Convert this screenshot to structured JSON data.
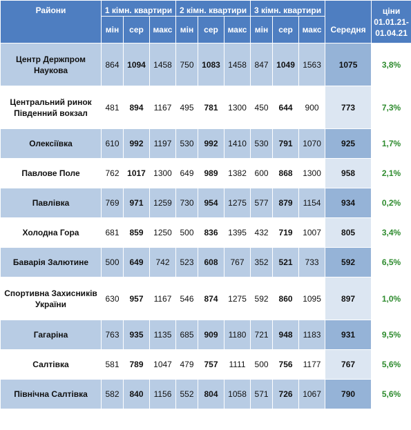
{
  "header": {
    "district": "Райони",
    "groups": [
      "1 кімн. квартири",
      "2 кімн. квартири",
      "3 кімн. квартири"
    ],
    "sub": [
      "мін",
      "сер",
      "макс"
    ],
    "average": "Середня",
    "change": "ціни 01.01.21-01.04.21"
  },
  "rows": [
    {
      "district": "Центр Держпром Наукова",
      "r1": [
        "864",
        "1094",
        "1458"
      ],
      "r2": [
        "750",
        "1083",
        "1458"
      ],
      "r3": [
        "847",
        "1049",
        "1563"
      ],
      "avg": "1075",
      "change": "3,8%"
    },
    {
      "district": "Центральний ринок Південний вокзал",
      "r1": [
        "481",
        "894",
        "1167"
      ],
      "r2": [
        "495",
        "781",
        "1300"
      ],
      "r3": [
        "450",
        "644",
        "900"
      ],
      "avg": "773",
      "change": "7,3%"
    },
    {
      "district": "Олексіївка",
      "r1": [
        "610",
        "992",
        "1197"
      ],
      "r2": [
        "530",
        "992",
        "1410"
      ],
      "r3": [
        "530",
        "791",
        "1070"
      ],
      "avg": "925",
      "change": "1,7%"
    },
    {
      "district": "Павлове Поле",
      "r1": [
        "762",
        "1017",
        "1300"
      ],
      "r2": [
        "649",
        "989",
        "1382"
      ],
      "r3": [
        "600",
        "868",
        "1300"
      ],
      "avg": "958",
      "change": "2,1%"
    },
    {
      "district": "Павлівка",
      "r1": [
        "769",
        "971",
        "1259"
      ],
      "r2": [
        "730",
        "954",
        "1275"
      ],
      "r3": [
        "577",
        "879",
        "1154"
      ],
      "avg": "934",
      "change": "0,2%"
    },
    {
      "district": "Холодна Гора",
      "r1": [
        "681",
        "859",
        "1250"
      ],
      "r2": [
        "500",
        "836",
        "1395"
      ],
      "r3": [
        "432",
        "719",
        "1007"
      ],
      "avg": "805",
      "change": "3,4%"
    },
    {
      "district": "Баварія Залютине",
      "r1": [
        "500",
        "649",
        "742"
      ],
      "r2": [
        "523",
        "608",
        "767"
      ],
      "r3": [
        "352",
        "521",
        "733"
      ],
      "avg": "592",
      "change": "6,5%"
    },
    {
      "district": "Спортивна Захисників України",
      "r1": [
        "630",
        "957",
        "1167"
      ],
      "r2": [
        "546",
        "874",
        "1275"
      ],
      "r3": [
        "592",
        "860",
        "1095"
      ],
      "avg": "897",
      "change": "1,0%"
    },
    {
      "district": "Гагаріна",
      "r1": [
        "763",
        "935",
        "1135"
      ],
      "r2": [
        "685",
        "909",
        "1180"
      ],
      "r3": [
        "721",
        "948",
        "1183"
      ],
      "avg": "931",
      "change": "9,5%"
    },
    {
      "district": "Салтівка",
      "r1": [
        "581",
        "789",
        "1047"
      ],
      "r2": [
        "479",
        "757",
        "1111"
      ],
      "r3": [
        "500",
        "756",
        "1177"
      ],
      "avg": "767",
      "change": "5,6%"
    },
    {
      "district": "Північна Салтівка",
      "r1": [
        "582",
        "840",
        "1156"
      ],
      "r2": [
        "552",
        "804",
        "1058"
      ],
      "r3": [
        "571",
        "726",
        "1067"
      ],
      "avg": "790",
      "change": "5,6%"
    }
  ],
  "colors": {
    "header_bg": "#4e7ec1",
    "alt_row_bg": "#b8cce4",
    "avg_bg": "#95b3d7",
    "change_text": "#2e8b2e"
  }
}
